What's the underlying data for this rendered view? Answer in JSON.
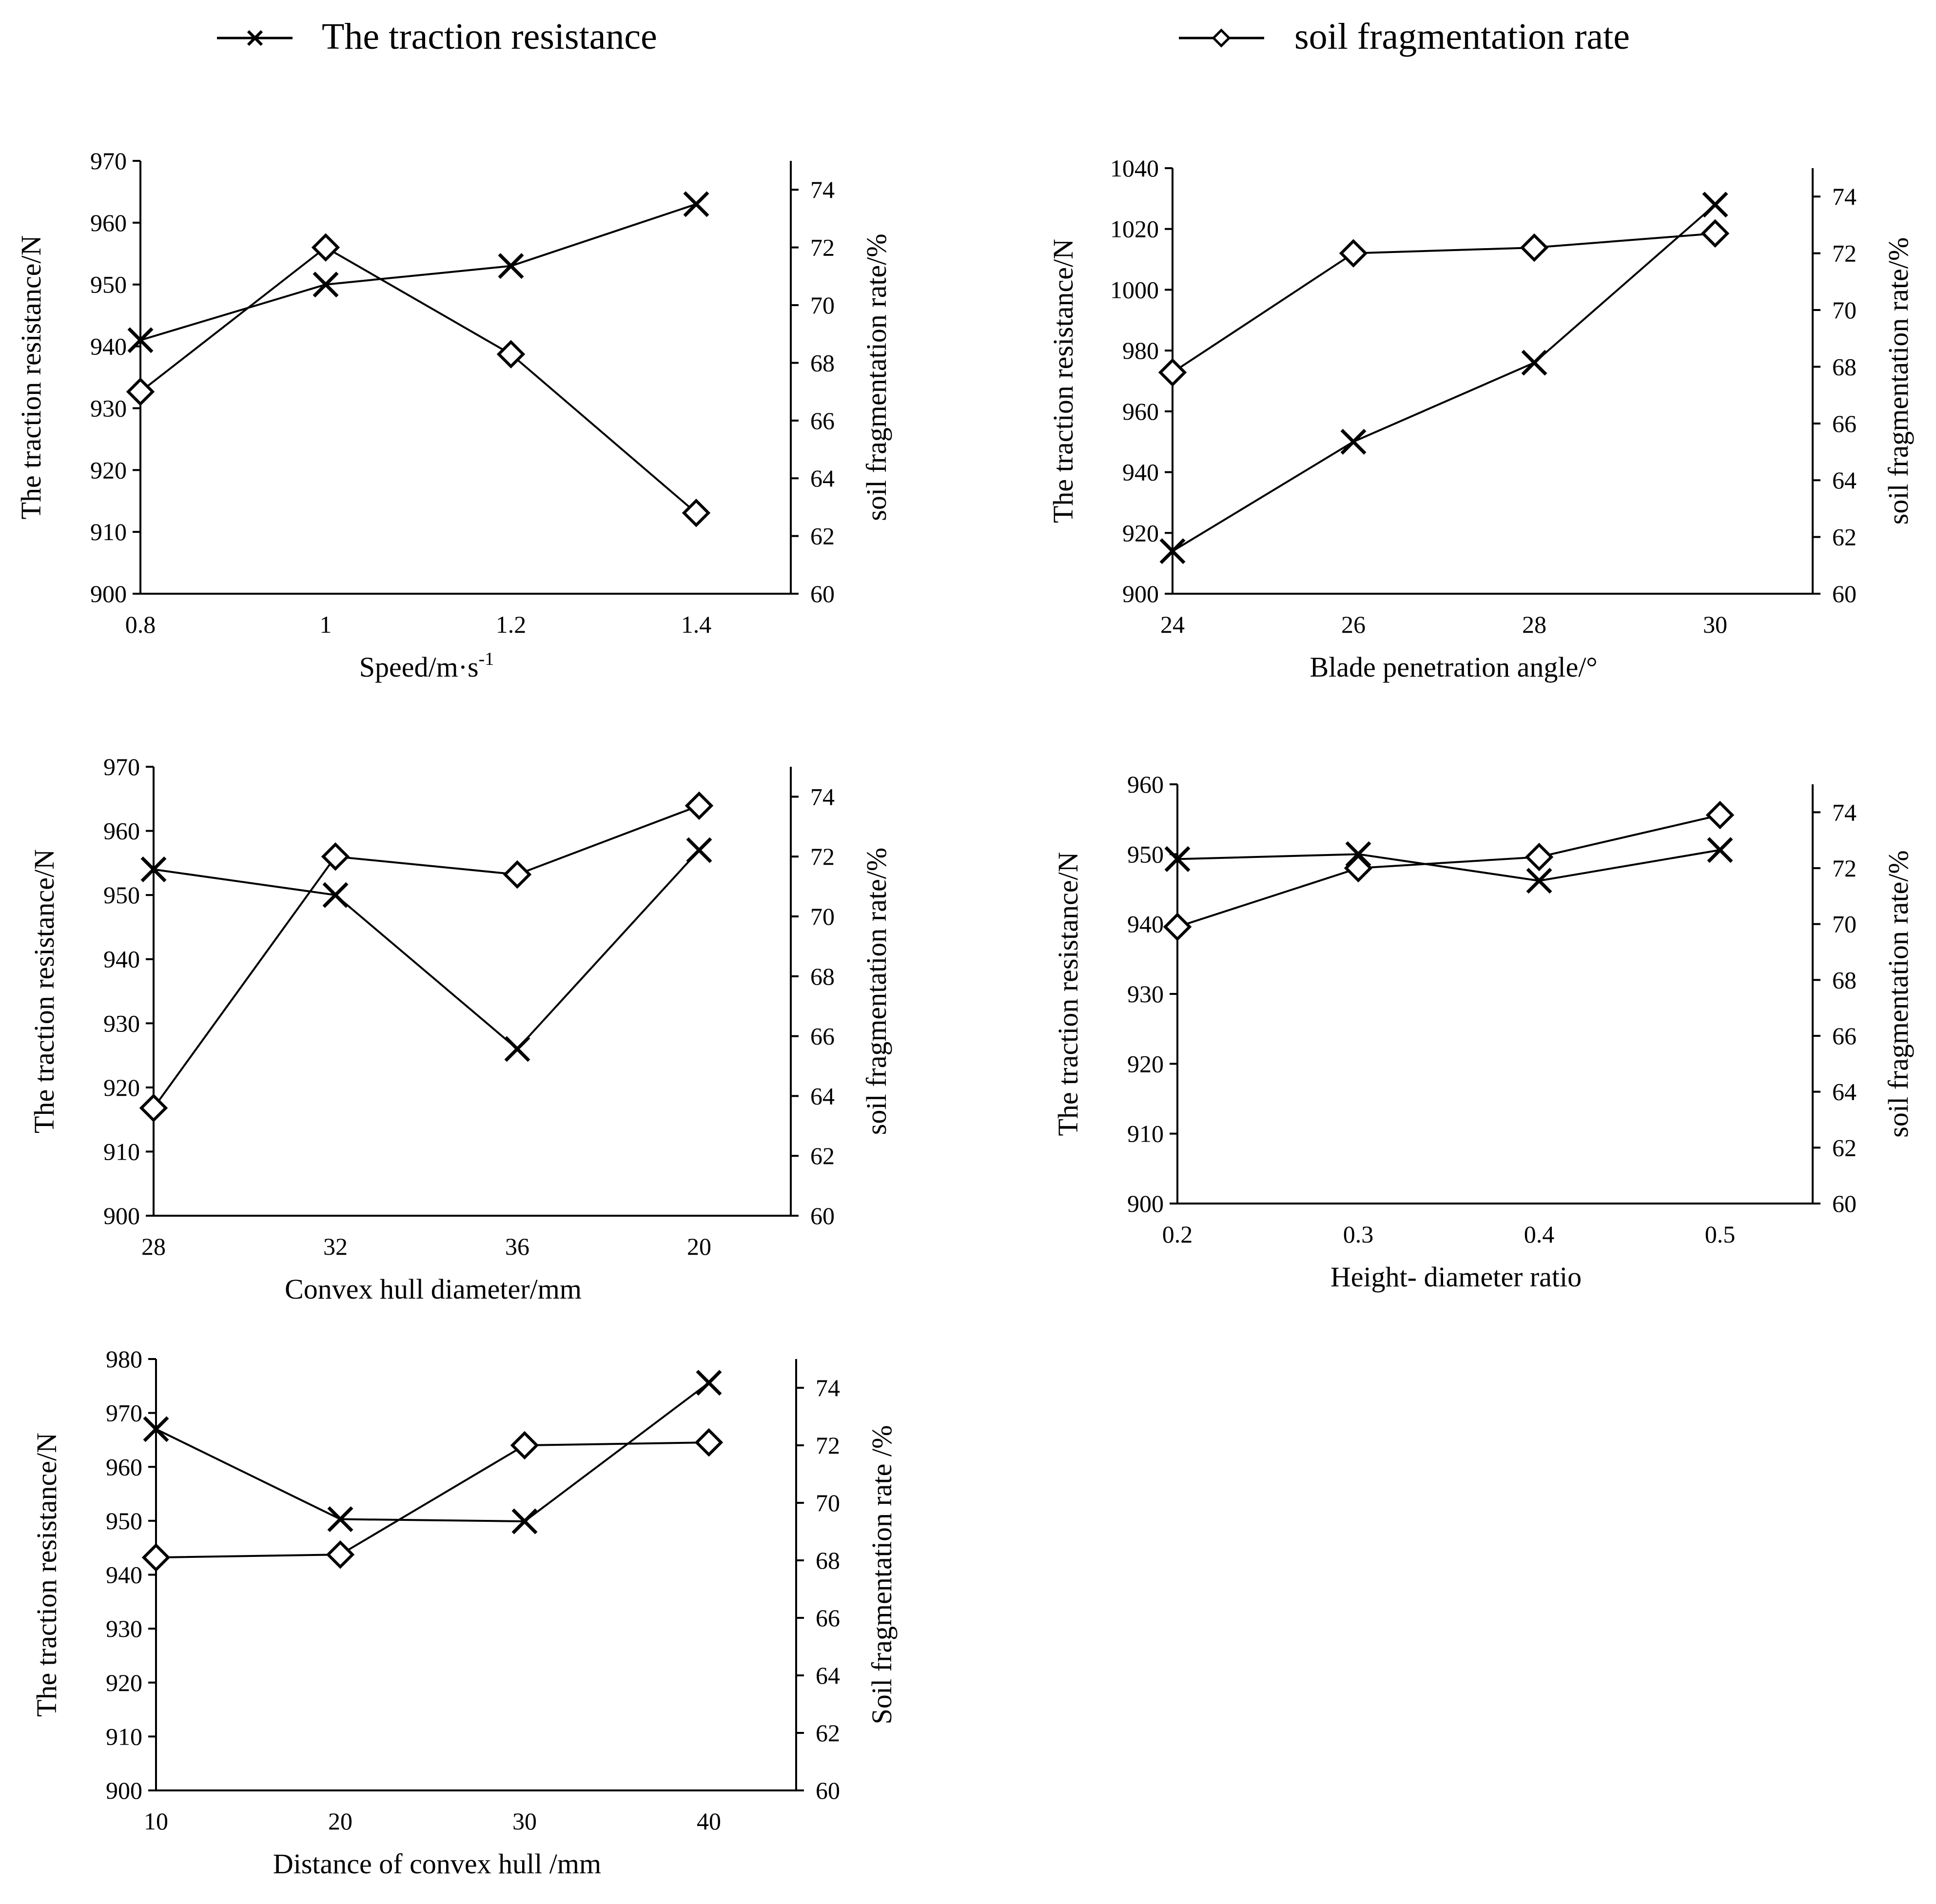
{
  "legend": {
    "series_a": "The traction resistance",
    "series_b": "soil fragmentation rate"
  },
  "chart_data": [
    {
      "type": "line",
      "title": "",
      "xlabel": "Speed/m·s",
      "xlabel_sup": "-1",
      "ylabel_left": "The traction resistance/N",
      "ylabel_right": "soil fragmentation rate/%",
      "categories": [
        "0.8",
        "1",
        "1.2",
        "1.4"
      ],
      "y_left_ticks": [
        900,
        910,
        920,
        930,
        940,
        950,
        960,
        970
      ],
      "y_left_range": [
        900,
        970
      ],
      "y_right_ticks": [
        60,
        62,
        64,
        66,
        68,
        70,
        72,
        74
      ],
      "y_right_range": [
        60,
        75
      ],
      "series": [
        {
          "name": "The traction resistance",
          "marker": "x",
          "axis": "left",
          "values": [
            941,
            950,
            953,
            963
          ]
        },
        {
          "name": "soil fragmentation rate",
          "marker": "diamond",
          "axis": "right",
          "values": [
            67.0,
            72.0,
            68.3,
            62.8
          ]
        }
      ]
    },
    {
      "type": "line",
      "title": "",
      "xlabel": "Blade penetration angle/°",
      "xlabel_sup": "",
      "ylabel_left": "The traction resistance/N",
      "ylabel_right": "soil fragmentation rate/%",
      "categories": [
        "24",
        "26",
        "28",
        "30"
      ],
      "y_left_ticks": [
        900,
        920,
        940,
        960,
        980,
        1000,
        1020,
        1040
      ],
      "y_left_range": [
        900,
        1040
      ],
      "y_right_ticks": [
        60,
        62,
        64,
        66,
        68,
        70,
        72,
        74
      ],
      "y_right_range": [
        60,
        75
      ],
      "series": [
        {
          "name": "The traction resistance",
          "marker": "x",
          "axis": "left",
          "values": [
            914,
            950,
            976,
            1028
          ]
        },
        {
          "name": "soil fragmentation rate",
          "marker": "diamond",
          "axis": "right",
          "values": [
            67.8,
            72.0,
            72.2,
            72.7
          ]
        }
      ]
    },
    {
      "type": "line",
      "title": "",
      "xlabel": "Convex hull diameter/mm",
      "xlabel_sup": "",
      "ylabel_left": "The traction resistance/N",
      "ylabel_right": "soil fragmentation rate/%",
      "categories": [
        "28",
        "32",
        "36",
        "20"
      ],
      "y_left_ticks": [
        900,
        910,
        920,
        930,
        940,
        950,
        960,
        970
      ],
      "y_left_range": [
        900,
        970
      ],
      "y_right_ticks": [
        60,
        62,
        64,
        66,
        68,
        70,
        72,
        74
      ],
      "y_right_range": [
        60,
        75
      ],
      "series": [
        {
          "name": "The traction resistance",
          "marker": "x",
          "axis": "left",
          "values": [
            954,
            950,
            926,
            957
          ]
        },
        {
          "name": "soil fragmentation rate",
          "marker": "diamond",
          "axis": "right",
          "values": [
            63.6,
            72.0,
            71.4,
            73.7
          ]
        }
      ]
    },
    {
      "type": "line",
      "title": "",
      "xlabel": "Height- diameter ratio",
      "xlabel_sup": "",
      "ylabel_left": "The traction resistance/N",
      "ylabel_right": "soil fragmentation rate/%",
      "categories": [
        "0.2",
        "0.3",
        "0.4",
        "0.5"
      ],
      "y_left_ticks": [
        900,
        910,
        920,
        930,
        940,
        950,
        960
      ],
      "y_left_range": [
        900,
        960
      ],
      "y_right_ticks": [
        60,
        62,
        64,
        66,
        68,
        70,
        72,
        74
      ],
      "y_right_range": [
        60,
        75
      ],
      "series": [
        {
          "name": "The traction resistance",
          "marker": "x",
          "axis": "left",
          "values": [
            949.3,
            950,
            946.2,
            950.6
          ]
        },
        {
          "name": "soil fragmentation rate",
          "marker": "diamond",
          "axis": "right",
          "values": [
            69.9,
            72.0,
            72.4,
            73.9
          ]
        }
      ]
    },
    {
      "type": "line",
      "title": "",
      "xlabel": "Distance of convex hull /mm",
      "xlabel_sup": "",
      "ylabel_left": "The traction resistance/N",
      "ylabel_right": "Soil fragmentation rate /%",
      "categories": [
        "10",
        "20",
        "30",
        "40"
      ],
      "y_left_ticks": [
        900,
        910,
        920,
        930,
        940,
        950,
        960,
        970,
        980
      ],
      "y_left_range": [
        900,
        980
      ],
      "y_right_ticks": [
        60,
        62,
        64,
        66,
        68,
        70,
        72,
        74
      ],
      "y_right_range": [
        60,
        75
      ],
      "series": [
        {
          "name": "The traction resistance",
          "marker": "x",
          "axis": "left",
          "values": [
            967,
            950.3,
            949.9,
            975.6
          ]
        },
        {
          "name": "soil fragmentation rate",
          "marker": "diamond",
          "axis": "right",
          "values": [
            68.1,
            68.2,
            72.0,
            72.1
          ]
        }
      ]
    }
  ]
}
